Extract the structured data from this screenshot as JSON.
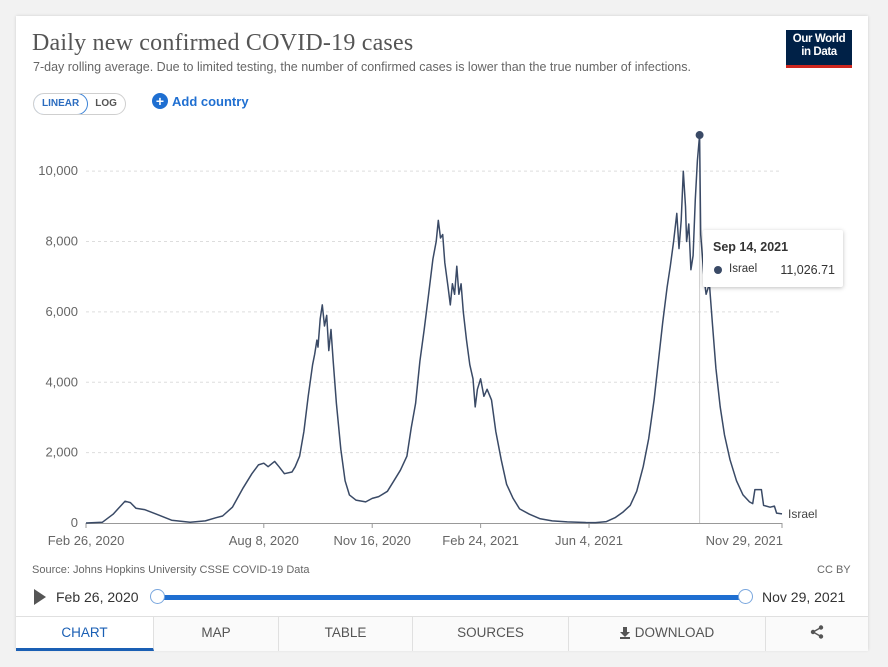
{
  "header": {
    "title": "Daily new confirmed COVID-19 cases",
    "subtitle": "7-day rolling average. Due to limited testing, the number of confirmed cases is lower than the true number of infections.",
    "logo_line1": "Our World",
    "logo_line2": "in Data"
  },
  "controls": {
    "linear_label": "LINEAR",
    "log_label": "LOG",
    "add_country_label": "Add country"
  },
  "chart_data": {
    "type": "line",
    "xlabel": "",
    "ylabel": "",
    "ylim": [
      0,
      11000
    ],
    "yticks": [
      0,
      2000,
      4000,
      6000,
      8000,
      10000
    ],
    "ytick_labels": [
      "0",
      "2,000",
      "4,000",
      "6,000",
      "8,000",
      "10,000"
    ],
    "xticks": [
      "2020-02-26",
      "2020-08-08",
      "2020-11-16",
      "2021-02-24",
      "2021-06-04",
      "2021-11-29"
    ],
    "xtick_labels": [
      "Feb 26, 2020",
      "Aug 8, 2020",
      "Nov 16, 2020",
      "Feb 24, 2021",
      "Jun 4, 2021",
      "Nov 29, 2021"
    ],
    "xlim": [
      "2020-02-26",
      "2021-11-29"
    ],
    "grid": "horizontal",
    "series": [
      {
        "name": "Israel",
        "color": "#3a4a66",
        "points": [
          [
            "2020-02-26",
            0
          ],
          [
            "2020-03-12",
            20
          ],
          [
            "2020-03-22",
            250
          ],
          [
            "2020-03-30",
            520
          ],
          [
            "2020-04-02",
            620
          ],
          [
            "2020-04-07",
            580
          ],
          [
            "2020-04-12",
            420
          ],
          [
            "2020-04-20",
            380
          ],
          [
            "2020-05-01",
            250
          ],
          [
            "2020-05-15",
            80
          ],
          [
            "2020-06-01",
            20
          ],
          [
            "2020-06-15",
            60
          ],
          [
            "2020-06-25",
            150
          ],
          [
            "2020-07-01",
            200
          ],
          [
            "2020-07-10",
            450
          ],
          [
            "2020-07-20",
            1000
          ],
          [
            "2020-07-28",
            1400
          ],
          [
            "2020-08-03",
            1650
          ],
          [
            "2020-08-08",
            1700
          ],
          [
            "2020-08-12",
            1600
          ],
          [
            "2020-08-18",
            1750
          ],
          [
            "2020-08-22",
            1600
          ],
          [
            "2020-08-27",
            1400
          ],
          [
            "2020-09-03",
            1450
          ],
          [
            "2020-09-06",
            1600
          ],
          [
            "2020-09-10",
            1900
          ],
          [
            "2020-09-14",
            2600
          ],
          [
            "2020-09-18",
            3600
          ],
          [
            "2020-09-22",
            4500
          ],
          [
            "2020-09-24",
            4800
          ],
          [
            "2020-09-26",
            5200
          ],
          [
            "2020-09-27",
            5000
          ],
          [
            "2020-09-29",
            5800
          ],
          [
            "2020-10-01",
            6200
          ],
          [
            "2020-10-03",
            5600
          ],
          [
            "2020-10-05",
            5900
          ],
          [
            "2020-10-07",
            4900
          ],
          [
            "2020-10-09",
            5500
          ],
          [
            "2020-10-11",
            4600
          ],
          [
            "2020-10-14",
            3400
          ],
          [
            "2020-10-18",
            2100
          ],
          [
            "2020-10-22",
            1200
          ],
          [
            "2020-10-26",
            800
          ],
          [
            "2020-11-01",
            650
          ],
          [
            "2020-11-10",
            600
          ],
          [
            "2020-11-16",
            700
          ],
          [
            "2020-11-22",
            750
          ],
          [
            "2020-11-30",
            900
          ],
          [
            "2020-12-06",
            1200
          ],
          [
            "2020-12-12",
            1500
          ],
          [
            "2020-12-18",
            1900
          ],
          [
            "2020-12-22",
            2700
          ],
          [
            "2020-12-26",
            3400
          ],
          [
            "2020-12-30",
            4600
          ],
          [
            "2021-01-03",
            5500
          ],
          [
            "2021-01-07",
            6500
          ],
          [
            "2021-01-11",
            7500
          ],
          [
            "2021-01-14",
            8000
          ],
          [
            "2021-01-16",
            8600
          ],
          [
            "2021-01-18",
            8100
          ],
          [
            "2021-01-20",
            8200
          ],
          [
            "2021-01-22",
            7400
          ],
          [
            "2021-01-25",
            6700
          ],
          [
            "2021-01-27",
            6200
          ],
          [
            "2021-01-29",
            6800
          ],
          [
            "2021-01-31",
            6500
          ],
          [
            "2021-02-02",
            7300
          ],
          [
            "2021-02-04",
            6500
          ],
          [
            "2021-02-06",
            6800
          ],
          [
            "2021-02-08",
            6000
          ],
          [
            "2021-02-11",
            5200
          ],
          [
            "2021-02-14",
            4500
          ],
          [
            "2021-02-17",
            4100
          ],
          [
            "2021-02-19",
            3300
          ],
          [
            "2021-02-21",
            3800
          ],
          [
            "2021-02-24",
            4100
          ],
          [
            "2021-02-27",
            3600
          ],
          [
            "2021-03-02",
            3800
          ],
          [
            "2021-03-06",
            3500
          ],
          [
            "2021-03-10",
            2600
          ],
          [
            "2021-03-15",
            1800
          ],
          [
            "2021-03-20",
            1100
          ],
          [
            "2021-03-26",
            700
          ],
          [
            "2021-04-01",
            400
          ],
          [
            "2021-04-10",
            250
          ],
          [
            "2021-04-20",
            120
          ],
          [
            "2021-05-01",
            60
          ],
          [
            "2021-05-15",
            30
          ],
          [
            "2021-06-01",
            15
          ],
          [
            "2021-06-10",
            10
          ],
          [
            "2021-06-20",
            40
          ],
          [
            "2021-06-28",
            150
          ],
          [
            "2021-07-05",
            300
          ],
          [
            "2021-07-12",
            500
          ],
          [
            "2021-07-18",
            900
          ],
          [
            "2021-07-24",
            1600
          ],
          [
            "2021-07-29",
            2400
          ],
          [
            "2021-08-03",
            3500
          ],
          [
            "2021-08-07",
            4600
          ],
          [
            "2021-08-11",
            5700
          ],
          [
            "2021-08-15",
            6700
          ],
          [
            "2021-08-18",
            7300
          ],
          [
            "2021-08-21",
            8000
          ],
          [
            "2021-08-24",
            8800
          ],
          [
            "2021-08-26",
            7800
          ],
          [
            "2021-08-28",
            8600
          ],
          [
            "2021-08-30",
            10000
          ],
          [
            "2021-09-01",
            9000
          ],
          [
            "2021-09-02",
            8000
          ],
          [
            "2021-09-04",
            8500
          ],
          [
            "2021-09-06",
            7200
          ],
          [
            "2021-09-08",
            7600
          ],
          [
            "2021-09-10",
            9200
          ],
          [
            "2021-09-12",
            10300
          ],
          [
            "2021-09-14",
            11026.71
          ],
          [
            "2021-09-15",
            8200
          ],
          [
            "2021-09-16",
            7800
          ],
          [
            "2021-09-18",
            7000
          ],
          [
            "2021-09-20",
            6500
          ],
          [
            "2021-09-23",
            6800
          ],
          [
            "2021-09-26",
            5600
          ],
          [
            "2021-09-29",
            4400
          ],
          [
            "2021-10-03",
            3300
          ],
          [
            "2021-10-07",
            2500
          ],
          [
            "2021-10-12",
            1800
          ],
          [
            "2021-10-18",
            1200
          ],
          [
            "2021-10-24",
            800
          ],
          [
            "2021-10-30",
            600
          ],
          [
            "2021-11-02",
            550
          ],
          [
            "2021-11-04",
            950
          ],
          [
            "2021-11-10",
            950
          ],
          [
            "2021-11-12",
            500
          ],
          [
            "2021-11-18",
            450
          ],
          [
            "2021-11-22",
            480
          ],
          [
            "2021-11-24",
            280
          ],
          [
            "2021-11-29",
            260
          ]
        ]
      }
    ],
    "highlight": {
      "x": "2021-09-14",
      "y": 11026.71
    },
    "series_label": "Israel"
  },
  "tooltip": {
    "date": "Sep 14, 2021",
    "series": "Israel",
    "value": "11,026.71"
  },
  "footer": {
    "source": "Source: Johns Hopkins University CSSE COVID-19 Data",
    "license": "CC BY"
  },
  "timeline": {
    "start_label": "Feb 26, 2020",
    "end_label": "Nov 29, 2021"
  },
  "tabs": [
    {
      "label": "CHART"
    },
    {
      "label": "MAP"
    },
    {
      "label": "TABLE"
    },
    {
      "label": "SOURCES"
    },
    {
      "label": "DOWNLOAD"
    }
  ],
  "share_icon": "share-icon"
}
